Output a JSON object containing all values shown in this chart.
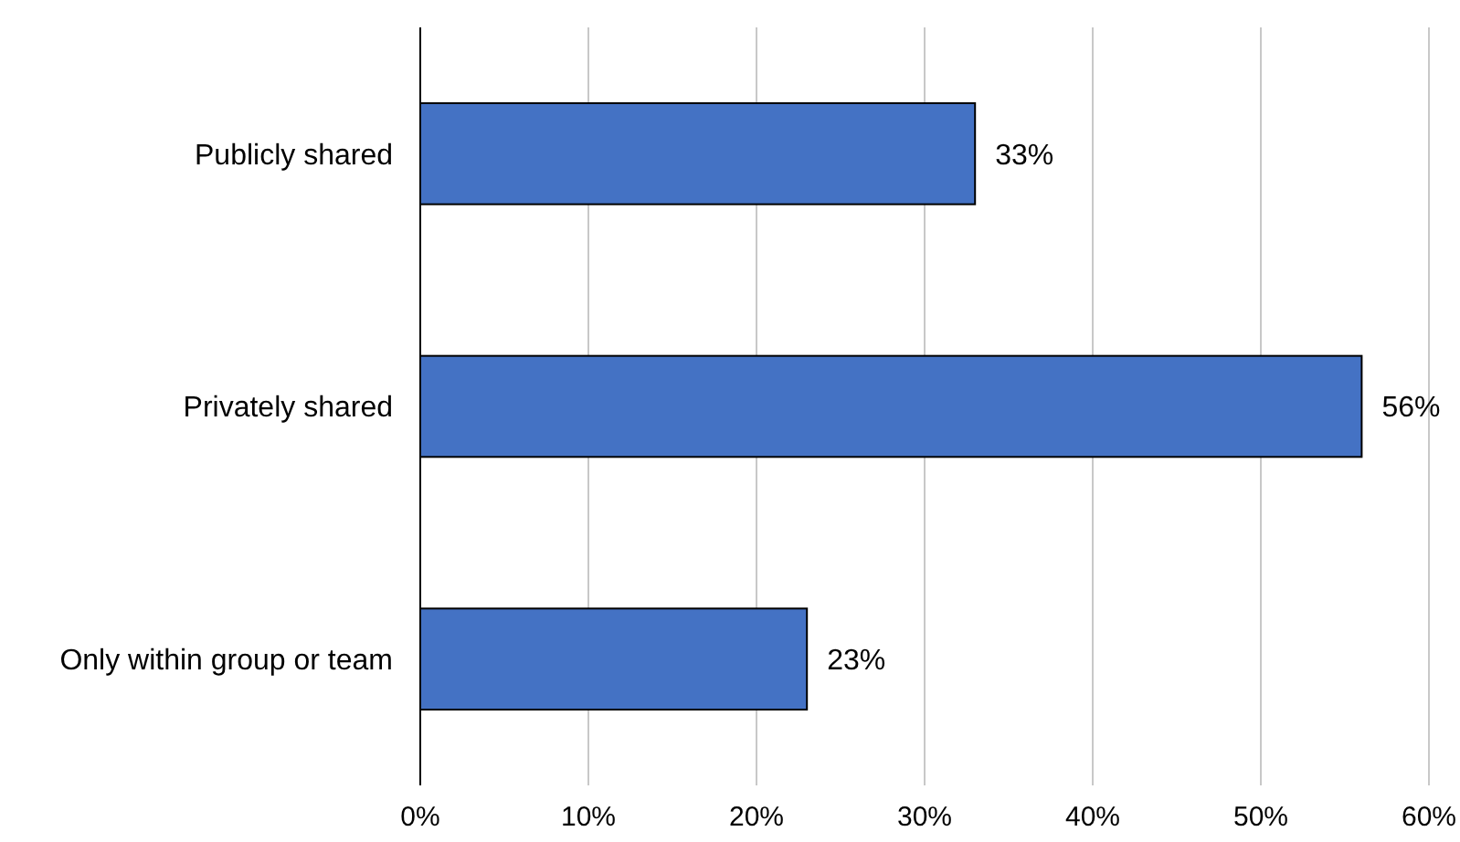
{
  "chart_data": {
    "type": "bar",
    "orientation": "horizontal",
    "categories": [
      "Publicly shared",
      "Privately shared",
      "Only within group or team"
    ],
    "values": [
      33,
      56,
      23
    ],
    "color": "#4472c4",
    "value_labels": [
      "33%",
      "56%",
      "23%"
    ],
    "xlim": [
      0,
      60
    ],
    "xticks": [
      {
        "value": 0,
        "label": "0%"
      },
      {
        "value": 10,
        "label": "10%"
      },
      {
        "value": 20,
        "label": "20%"
      },
      {
        "value": 30,
        "label": "30%"
      },
      {
        "value": 40,
        "label": "40%"
      },
      {
        "value": 50,
        "label": "50%"
      },
      {
        "value": 60,
        "label": "60%"
      }
    ],
    "grid": "x"
  }
}
